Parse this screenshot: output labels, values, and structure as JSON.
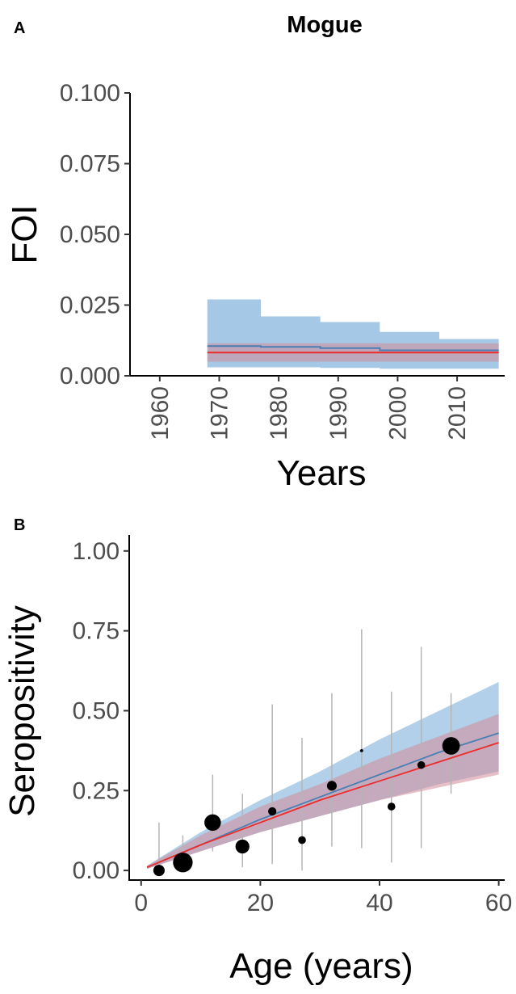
{
  "colors": {
    "blue_line": "#4a7fb5",
    "blue_band": "#7fb1db",
    "red_line": "#ee2b2b",
    "red_band": "#d48a98",
    "points": "#000000",
    "error_bars": "#b5b5b5"
  },
  "chart_data": [
    {
      "panel_label": "A",
      "type": "area",
      "title": "Mogue",
      "xlabel": "Years",
      "ylabel": "FOI",
      "xlim": [
        1955,
        2018
      ],
      "ylim": [
        0,
        0.1
      ],
      "x_ticks": [
        "1960",
        "1970",
        "1980",
        "1990",
        "2000",
        "2010"
      ],
      "y_ticks": [
        "0.000",
        "0.025",
        "0.050",
        "0.075",
        "0.100"
      ],
      "grid": false,
      "legend": "none",
      "series": [
        {
          "kind": "step_band",
          "color": "blue",
          "segments": [
            {
              "x0": 1968,
              "x1": 1977,
              "lo": 0.003,
              "mid": 0.0105,
              "hi": 0.027
            },
            {
              "x0": 1977,
              "x1": 1987,
              "lo": 0.003,
              "mid": 0.0102,
              "hi": 0.021
            },
            {
              "x0": 1987,
              "x1": 1997,
              "lo": 0.0028,
              "mid": 0.0098,
              "hi": 0.019
            },
            {
              "x0": 1997,
              "x1": 2007,
              "lo": 0.0025,
              "mid": 0.009,
              "hi": 0.0155
            },
            {
              "x0": 2007,
              "x1": 2017,
              "lo": 0.0025,
              "mid": 0.009,
              "hi": 0.013
            }
          ]
        },
        {
          "kind": "step_band",
          "color": "red",
          "segments": [
            {
              "x0": 1968,
              "x1": 2017,
              "lo": 0.005,
              "mid": 0.0082,
              "hi": 0.0115
            }
          ]
        }
      ]
    },
    {
      "panel_label": "B",
      "type": "scatter",
      "xlabel": "Age (years)",
      "ylabel": "Seropositivity",
      "xlim": [
        -2,
        61
      ],
      "ylim": [
        -0.03,
        1.05
      ],
      "x_ticks": [
        "0",
        "20",
        "40",
        "60"
      ],
      "y_ticks": [
        "0.00",
        "0.25",
        "0.50",
        "0.75",
        "1.00"
      ],
      "grid": false,
      "legend": "none",
      "curves": [
        {
          "color": "blue",
          "x": [
            1,
            10,
            20,
            30,
            40,
            50,
            60
          ],
          "mid": [
            0.01,
            0.08,
            0.16,
            0.23,
            0.3,
            0.37,
            0.43
          ],
          "lo": [
            0.005,
            0.06,
            0.12,
            0.17,
            0.22,
            0.27,
            0.31
          ],
          "hi": [
            0.015,
            0.12,
            0.22,
            0.31,
            0.41,
            0.5,
            0.59
          ]
        },
        {
          "color": "red",
          "x": [
            1,
            10,
            20,
            30,
            40,
            50,
            60
          ],
          "mid": [
            0.01,
            0.08,
            0.15,
            0.22,
            0.28,
            0.34,
            0.4
          ],
          "lo": [
            0.005,
            0.06,
            0.12,
            0.17,
            0.22,
            0.26,
            0.3
          ],
          "hi": [
            0.015,
            0.11,
            0.2,
            0.27,
            0.35,
            0.42,
            0.49
          ]
        }
      ],
      "points": [
        {
          "x": 3,
          "y": 0.0,
          "lo": 0.0,
          "hi": 0.15,
          "size": 2.2
        },
        {
          "x": 7,
          "y": 0.025,
          "lo": 0.0,
          "hi": 0.11,
          "size": 3.8
        },
        {
          "x": 12,
          "y": 0.15,
          "lo": 0.06,
          "hi": 0.3,
          "size": 3.2
        },
        {
          "x": 17,
          "y": 0.075,
          "lo": 0.01,
          "hi": 0.24,
          "size": 2.7
        },
        {
          "x": 22,
          "y": 0.185,
          "lo": 0.02,
          "hi": 0.52,
          "size": 1.6
        },
        {
          "x": 27,
          "y": 0.095,
          "lo": 0.0,
          "hi": 0.415,
          "size": 1.5
        },
        {
          "x": 32,
          "y": 0.265,
          "lo": 0.075,
          "hi": 0.555,
          "size": 1.9
        },
        {
          "x": 37,
          "y": 0.375,
          "lo": 0.07,
          "hi": 0.755,
          "size": 0.6
        },
        {
          "x": 42,
          "y": 0.2,
          "lo": 0.025,
          "hi": 0.56,
          "size": 1.5
        },
        {
          "x": 47,
          "y": 0.33,
          "lo": 0.07,
          "hi": 0.7,
          "size": 1.5
        },
        {
          "x": 52,
          "y": 0.39,
          "lo": 0.24,
          "hi": 0.555,
          "size": 3.4
        }
      ]
    }
  ]
}
